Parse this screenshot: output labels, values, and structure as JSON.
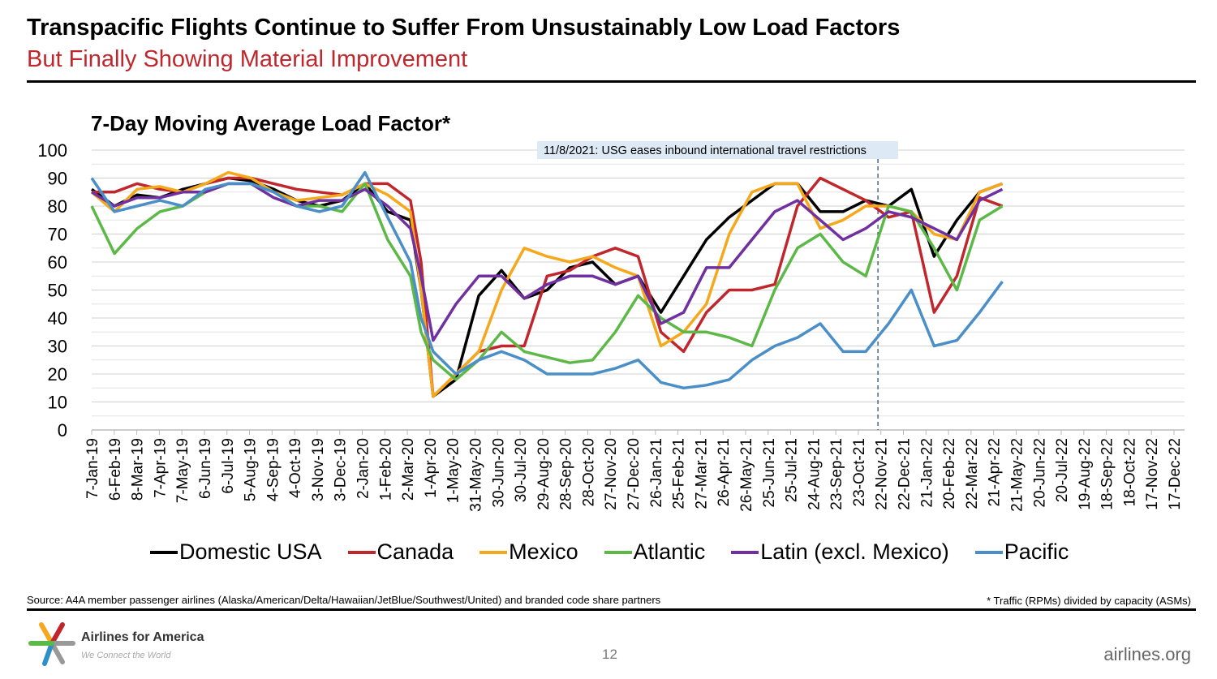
{
  "slide": {
    "title": "Transpacific Flights Continue to Suffer From Unsustainably Low Load Factors",
    "subtitle": "But Finally Showing Material Improvement",
    "source": "Source: A4A member passenger airlines (Alaska/American/Delta/Hawaiian/JetBlue/Southwest/United) and branded code share partners",
    "footnote": "* Traffic (RPMs) divided by capacity (ASMs)",
    "brand": "Airlines for America",
    "tagline": "We Connect the World",
    "page_number": "12",
    "website": "airlines.org",
    "accent_color": "#c0272d"
  },
  "chart_data": {
    "type": "line",
    "title": "7-Day Moving Average Load Factor*",
    "xlabel": "",
    "ylabel": "",
    "ylim": [
      0,
      100
    ],
    "xlim": [
      "2019-01-07",
      "2022-12-17"
    ],
    "yticks": [
      "0",
      "10",
      "20",
      "30",
      "40",
      "50",
      "60",
      "70",
      "80",
      "90",
      "100"
    ],
    "grid": true,
    "legend_position": "bottom",
    "annotation": {
      "text": "11/8/2021: USG eases inbound international travel restrictions",
      "date": "2021-11-08"
    },
    "xtick_labels": [
      "7-Jan-19",
      "6-Feb-19",
      "8-Mar-19",
      "7-Apr-19",
      "7-May-19",
      "6-Jun-19",
      "6-Jul-19",
      "5-Aug-19",
      "4-Sep-19",
      "4-Oct-19",
      "3-Nov-19",
      "3-Dec-19",
      "2-Jan-20",
      "1-Feb-20",
      "2-Mar-20",
      "1-Apr-20",
      "1-May-20",
      "31-May-20",
      "30-Jun-20",
      "30-Jul-20",
      "29-Aug-20",
      "28-Sep-20",
      "28-Oct-20",
      "27-Nov-20",
      "27-Dec-20",
      "26-Jan-21",
      "25-Feb-21",
      "27-Mar-21",
      "26-Apr-21",
      "26-May-21",
      "25-Jun-21",
      "25-Jul-21",
      "24-Aug-21",
      "23-Sep-21",
      "23-Oct-21",
      "22-Nov-21",
      "22-Dec-21",
      "21-Jan-22",
      "20-Feb-22",
      "22-Mar-22",
      "21-Apr-22",
      "21-May-22",
      "20-Jun-22",
      "20-Jul-22",
      "19-Aug-22",
      "18-Sep-22",
      "18-Oct-22",
      "17-Nov-22",
      "17-Dec-22"
    ],
    "x": [
      "2019-01-07",
      "2019-02-06",
      "2019-03-08",
      "2019-04-07",
      "2019-05-07",
      "2019-06-06",
      "2019-07-06",
      "2019-08-05",
      "2019-09-04",
      "2019-10-04",
      "2019-11-03",
      "2019-12-03",
      "2020-01-02",
      "2020-02-01",
      "2020-03-02",
      "2020-03-16",
      "2020-04-01",
      "2020-05-01",
      "2020-05-31",
      "2020-06-30",
      "2020-07-30",
      "2020-08-29",
      "2020-09-28",
      "2020-10-28",
      "2020-11-27",
      "2020-12-27",
      "2021-01-26",
      "2021-02-25",
      "2021-03-27",
      "2021-04-26",
      "2021-05-26",
      "2021-06-25",
      "2021-07-25",
      "2021-08-24",
      "2021-09-23",
      "2021-10-23",
      "2021-11-22",
      "2021-12-22",
      "2022-01-21",
      "2022-02-20",
      "2022-03-22",
      "2022-04-21"
    ],
    "series": [
      {
        "name": "Domestic USA",
        "color": "#000000",
        "values": [
          86,
          80,
          84,
          83,
          86,
          88,
          90,
          89,
          86,
          82,
          80,
          82,
          88,
          78,
          75,
          50,
          12,
          18,
          48,
          57,
          47,
          50,
          58,
          60,
          52,
          55,
          42,
          55,
          68,
          76,
          82,
          88,
          88,
          78,
          78,
          82,
          80,
          86,
          62,
          75,
          85,
          88
        ]
      },
      {
        "name": "Canada",
        "color": "#c0272d",
        "values": [
          85,
          85,
          88,
          86,
          85,
          88,
          90,
          90,
          88,
          86,
          85,
          84,
          88,
          88,
          82,
          60,
          12,
          20,
          28,
          30,
          30,
          55,
          57,
          62,
          65,
          62,
          35,
          28,
          42,
          50,
          50,
          52,
          80,
          90,
          86,
          82,
          76,
          78,
          42,
          55,
          83,
          80
        ]
      },
      {
        "name": "Mexico",
        "color": "#f5a81c",
        "values": [
          85,
          78,
          86,
          87,
          85,
          88,
          92,
          90,
          85,
          82,
          83,
          84,
          88,
          84,
          78,
          50,
          12,
          20,
          28,
          50,
          65,
          62,
          60,
          62,
          58,
          55,
          30,
          35,
          45,
          70,
          85,
          88,
          88,
          72,
          75,
          80,
          80,
          78,
          70,
          68,
          85,
          88
        ]
      },
      {
        "name": "Atlantic",
        "color": "#5db947",
        "values": [
          80,
          63,
          72,
          78,
          80,
          85,
          88,
          88,
          85,
          80,
          80,
          78,
          88,
          68,
          55,
          35,
          25,
          18,
          25,
          35,
          28,
          26,
          24,
          25,
          35,
          48,
          40,
          35,
          35,
          33,
          30,
          50,
          65,
          70,
          60,
          55,
          80,
          78,
          65,
          50,
          75,
          80
        ]
      },
      {
        "name": "Latin (excl. Mexico)",
        "color": "#7030a0",
        "values": [
          85,
          80,
          83,
          83,
          85,
          85,
          88,
          88,
          83,
          80,
          82,
          82,
          86,
          80,
          72,
          55,
          32,
          45,
          55,
          55,
          47,
          52,
          55,
          55,
          52,
          55,
          38,
          42,
          58,
          58,
          68,
          78,
          82,
          75,
          68,
          72,
          78,
          76,
          72,
          68,
          82,
          86
        ]
      },
      {
        "name": "Pacific",
        "color": "#4a8fc7",
        "values": [
          90,
          78,
          80,
          82,
          80,
          86,
          88,
          88,
          85,
          80,
          78,
          80,
          92,
          76,
          60,
          40,
          28,
          20,
          25,
          28,
          25,
          20,
          20,
          20,
          22,
          25,
          17,
          15,
          16,
          18,
          25,
          30,
          33,
          38,
          28,
          28,
          38,
          50,
          30,
          32,
          42,
          53
        ]
      }
    ]
  }
}
